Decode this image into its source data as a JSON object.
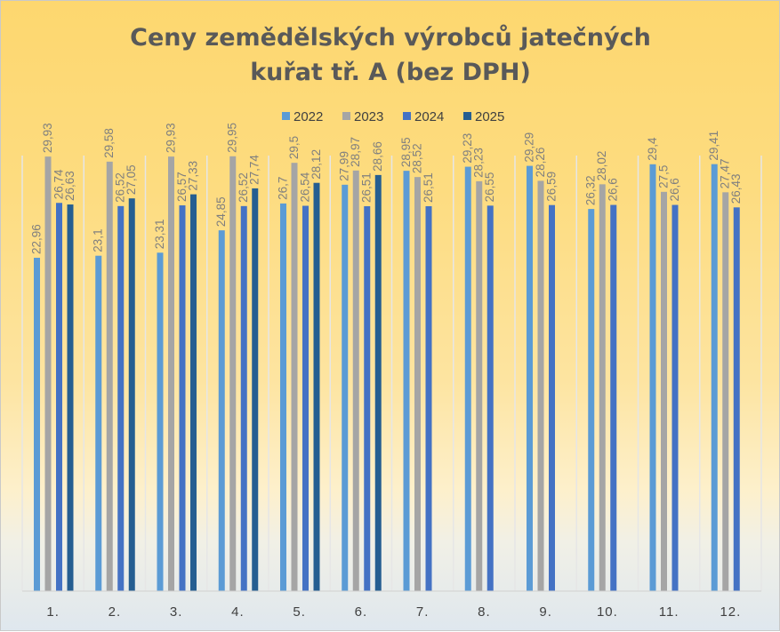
{
  "chart_data": {
    "type": "bar",
    "title_lines": [
      "Ceny zemědělských výrobců jatečných",
      "kuřat tř. A (bez DPH)"
    ],
    "categories": [
      "1.",
      "2.",
      "3.",
      "4.",
      "5.",
      "6.",
      "7.",
      "8.",
      "9.",
      "10.",
      "11.",
      "12."
    ],
    "series": [
      {
        "name": "2022",
        "color": "#5b9bd5",
        "values": [
          22.96,
          23.1,
          23.31,
          24.85,
          26.7,
          27.99,
          28.95,
          29.23,
          29.29,
          26.32,
          29.4,
          29.41
        ],
        "labels": [
          "22,96",
          "23,1",
          "23,31",
          "24,85",
          "26,7",
          "27,99",
          "28,95",
          "29,23",
          "29,29",
          "26,32",
          "29,4",
          "29,41"
        ]
      },
      {
        "name": "2023",
        "color": "#a5a5a5",
        "values": [
          29.93,
          29.58,
          29.93,
          29.95,
          29.5,
          28.97,
          28.52,
          28.23,
          28.26,
          28.02,
          27.5,
          27.47
        ],
        "labels": [
          "29,93",
          "29,58",
          "29,93",
          "29,95",
          "29,5",
          "28,97",
          "28,52",
          "28,23",
          "28,26",
          "28,02",
          "27,5",
          "27,47"
        ]
      },
      {
        "name": "2024",
        "color": "#4472c4",
        "values": [
          26.74,
          26.52,
          26.57,
          26.52,
          26.54,
          26.51,
          26.51,
          26.55,
          26.59,
          26.6,
          26.6,
          26.43
        ],
        "labels": [
          "26,74",
          "26,52",
          "26,57",
          "26,52",
          "26,54",
          "26,51",
          "26,51",
          "26,55",
          "26,59",
          "26,6",
          "26,6",
          "26,43"
        ]
      },
      {
        "name": "2025",
        "color": "#255e91",
        "values": [
          26.63,
          27.05,
          27.33,
          27.74,
          28.12,
          28.66,
          null,
          null,
          null,
          null,
          null,
          null
        ],
        "labels": [
          "26,63",
          "27,05",
          "27,33",
          "27,74",
          "28,12",
          "28,66",
          null,
          null,
          null,
          null,
          null,
          null
        ]
      }
    ],
    "xlabel": "",
    "ylabel": "",
    "ylim": [
      0,
      30
    ],
    "grid": "vertical",
    "legend_position": "top"
  }
}
